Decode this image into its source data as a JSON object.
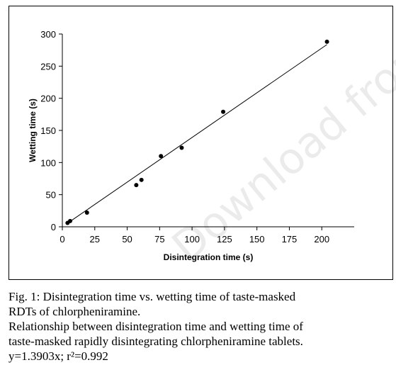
{
  "chart_data": {
    "type": "scatter",
    "title": "",
    "xlabel": "Disintegration time (s)",
    "ylabel": "Wetting time (s)",
    "xlim": [
      0,
      225
    ],
    "ylim": [
      0,
      300
    ],
    "xticks": [
      0,
      25,
      50,
      75,
      100,
      125,
      150,
      175,
      200
    ],
    "yticks": [
      0,
      50,
      100,
      150,
      200,
      250,
      300
    ],
    "grid": false,
    "points": [
      {
        "x": 4,
        "y": 6
      },
      {
        "x": 6,
        "y": 9
      },
      {
        "x": 19,
        "y": 22
      },
      {
        "x": 57,
        "y": 65
      },
      {
        "x": 61,
        "y": 73
      },
      {
        "x": 76,
        "y": 110
      },
      {
        "x": 92,
        "y": 123
      },
      {
        "x": 124,
        "y": 179
      },
      {
        "x": 204,
        "y": 288
      }
    ],
    "trendline": {
      "slope": 1.3903,
      "intercept": 0,
      "x_range": [
        5,
        204
      ]
    },
    "marker_color": "#000000",
    "line_color": "#000000"
  },
  "caption": {
    "line1": "Fig. 1: Disintegration time vs. wetting time of taste-masked",
    "line2": "RDTs of chlorpheniramine.",
    "line3": "Relationship between disintegration time and wetting time of",
    "line4": "taste-masked rapidly disintegrating chlorpheniramine tablets.",
    "line5": "y=1.3903x; r²=0.992"
  },
  "watermark": "Download from"
}
